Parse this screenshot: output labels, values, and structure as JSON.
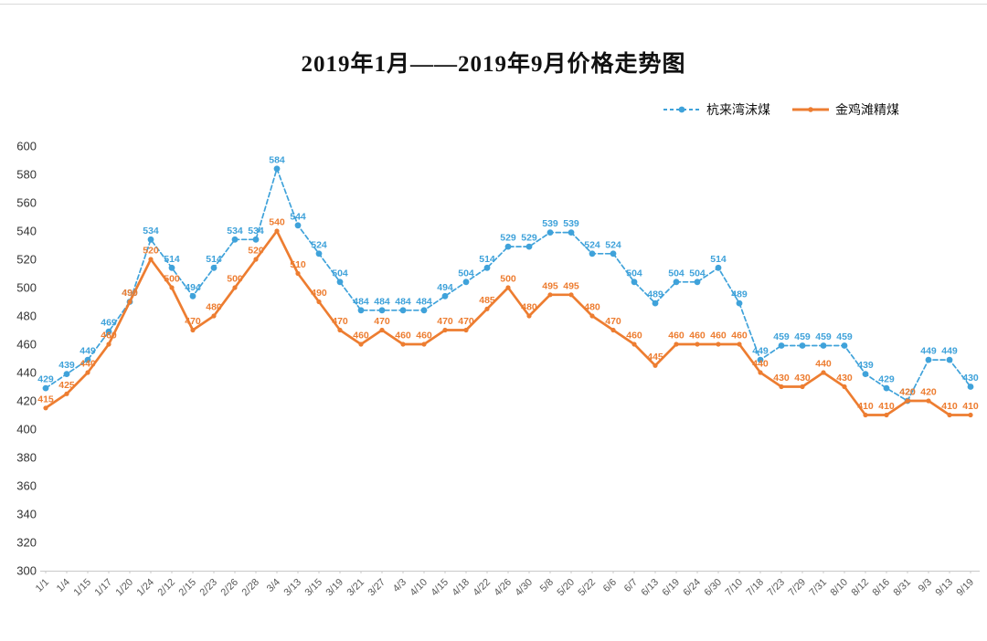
{
  "chart_data": {
    "type": "line",
    "title": "2019年1月——2019年9月价格走势图",
    "categories": [
      "1/1",
      "1/4",
      "1/15",
      "1/17",
      "1/20",
      "1/24",
      "2/12",
      "2/15",
      "2/23",
      "2/26",
      "2/28",
      "3/4",
      "3/13",
      "3/15",
      "3/19",
      "3/21",
      "3/27",
      "4/3",
      "4/10",
      "4/15",
      "4/18",
      "4/22",
      "4/26",
      "4/30",
      "5/8",
      "5/20",
      "5/22",
      "6/6",
      "6/7",
      "6/13",
      "6/19",
      "6/24",
      "6/30",
      "7/10",
      "7/18",
      "7/23",
      "7/29",
      "7/31",
      "8/10",
      "8/12",
      "8/16",
      "8/31",
      "9/3",
      "9/13",
      "9/19"
    ],
    "series": [
      {
        "name": "杭来湾沫煤",
        "color": "#3FA2DA",
        "line_style": "dashed",
        "marker": "circle",
        "values": [
          429,
          439,
          449,
          469,
          490,
          534,
          514,
          494,
          514,
          534,
          534,
          584,
          544,
          524,
          504,
          484,
          484,
          484,
          484,
          494,
          504,
          514,
          529,
          529,
          539,
          539,
          524,
          524,
          504,
          489,
          504,
          504,
          514,
          489,
          449,
          459,
          459,
          459,
          459,
          439,
          429,
          420,
          449,
          449,
          430
        ]
      },
      {
        "name": "金鸡滩精煤",
        "color": "#ED7D31",
        "line_style": "solid",
        "marker": "circle",
        "values": [
          415,
          425,
          440,
          460,
          490,
          520,
          500,
          470,
          480,
          500,
          520,
          540,
          510,
          490,
          470,
          460,
          470,
          460,
          460,
          470,
          470,
          485,
          500,
          480,
          495,
          495,
          480,
          470,
          460,
          445,
          460,
          460,
          460,
          460,
          440,
          430,
          430,
          440,
          430,
          410,
          410,
          420,
          420,
          410,
          410
        ]
      }
    ],
    "ylim": [
      300,
      600
    ],
    "yticks": [
      300,
      320,
      340,
      360,
      380,
      400,
      420,
      440,
      460,
      480,
      500,
      520,
      540,
      560,
      580,
      600
    ],
    "grid": false,
    "legend_position": "top-right",
    "data_labels": true,
    "axis_colors": {
      "y_labels": "#333333",
      "x_labels": "#595959",
      "axis_line": "#C9C9C9"
    }
  }
}
